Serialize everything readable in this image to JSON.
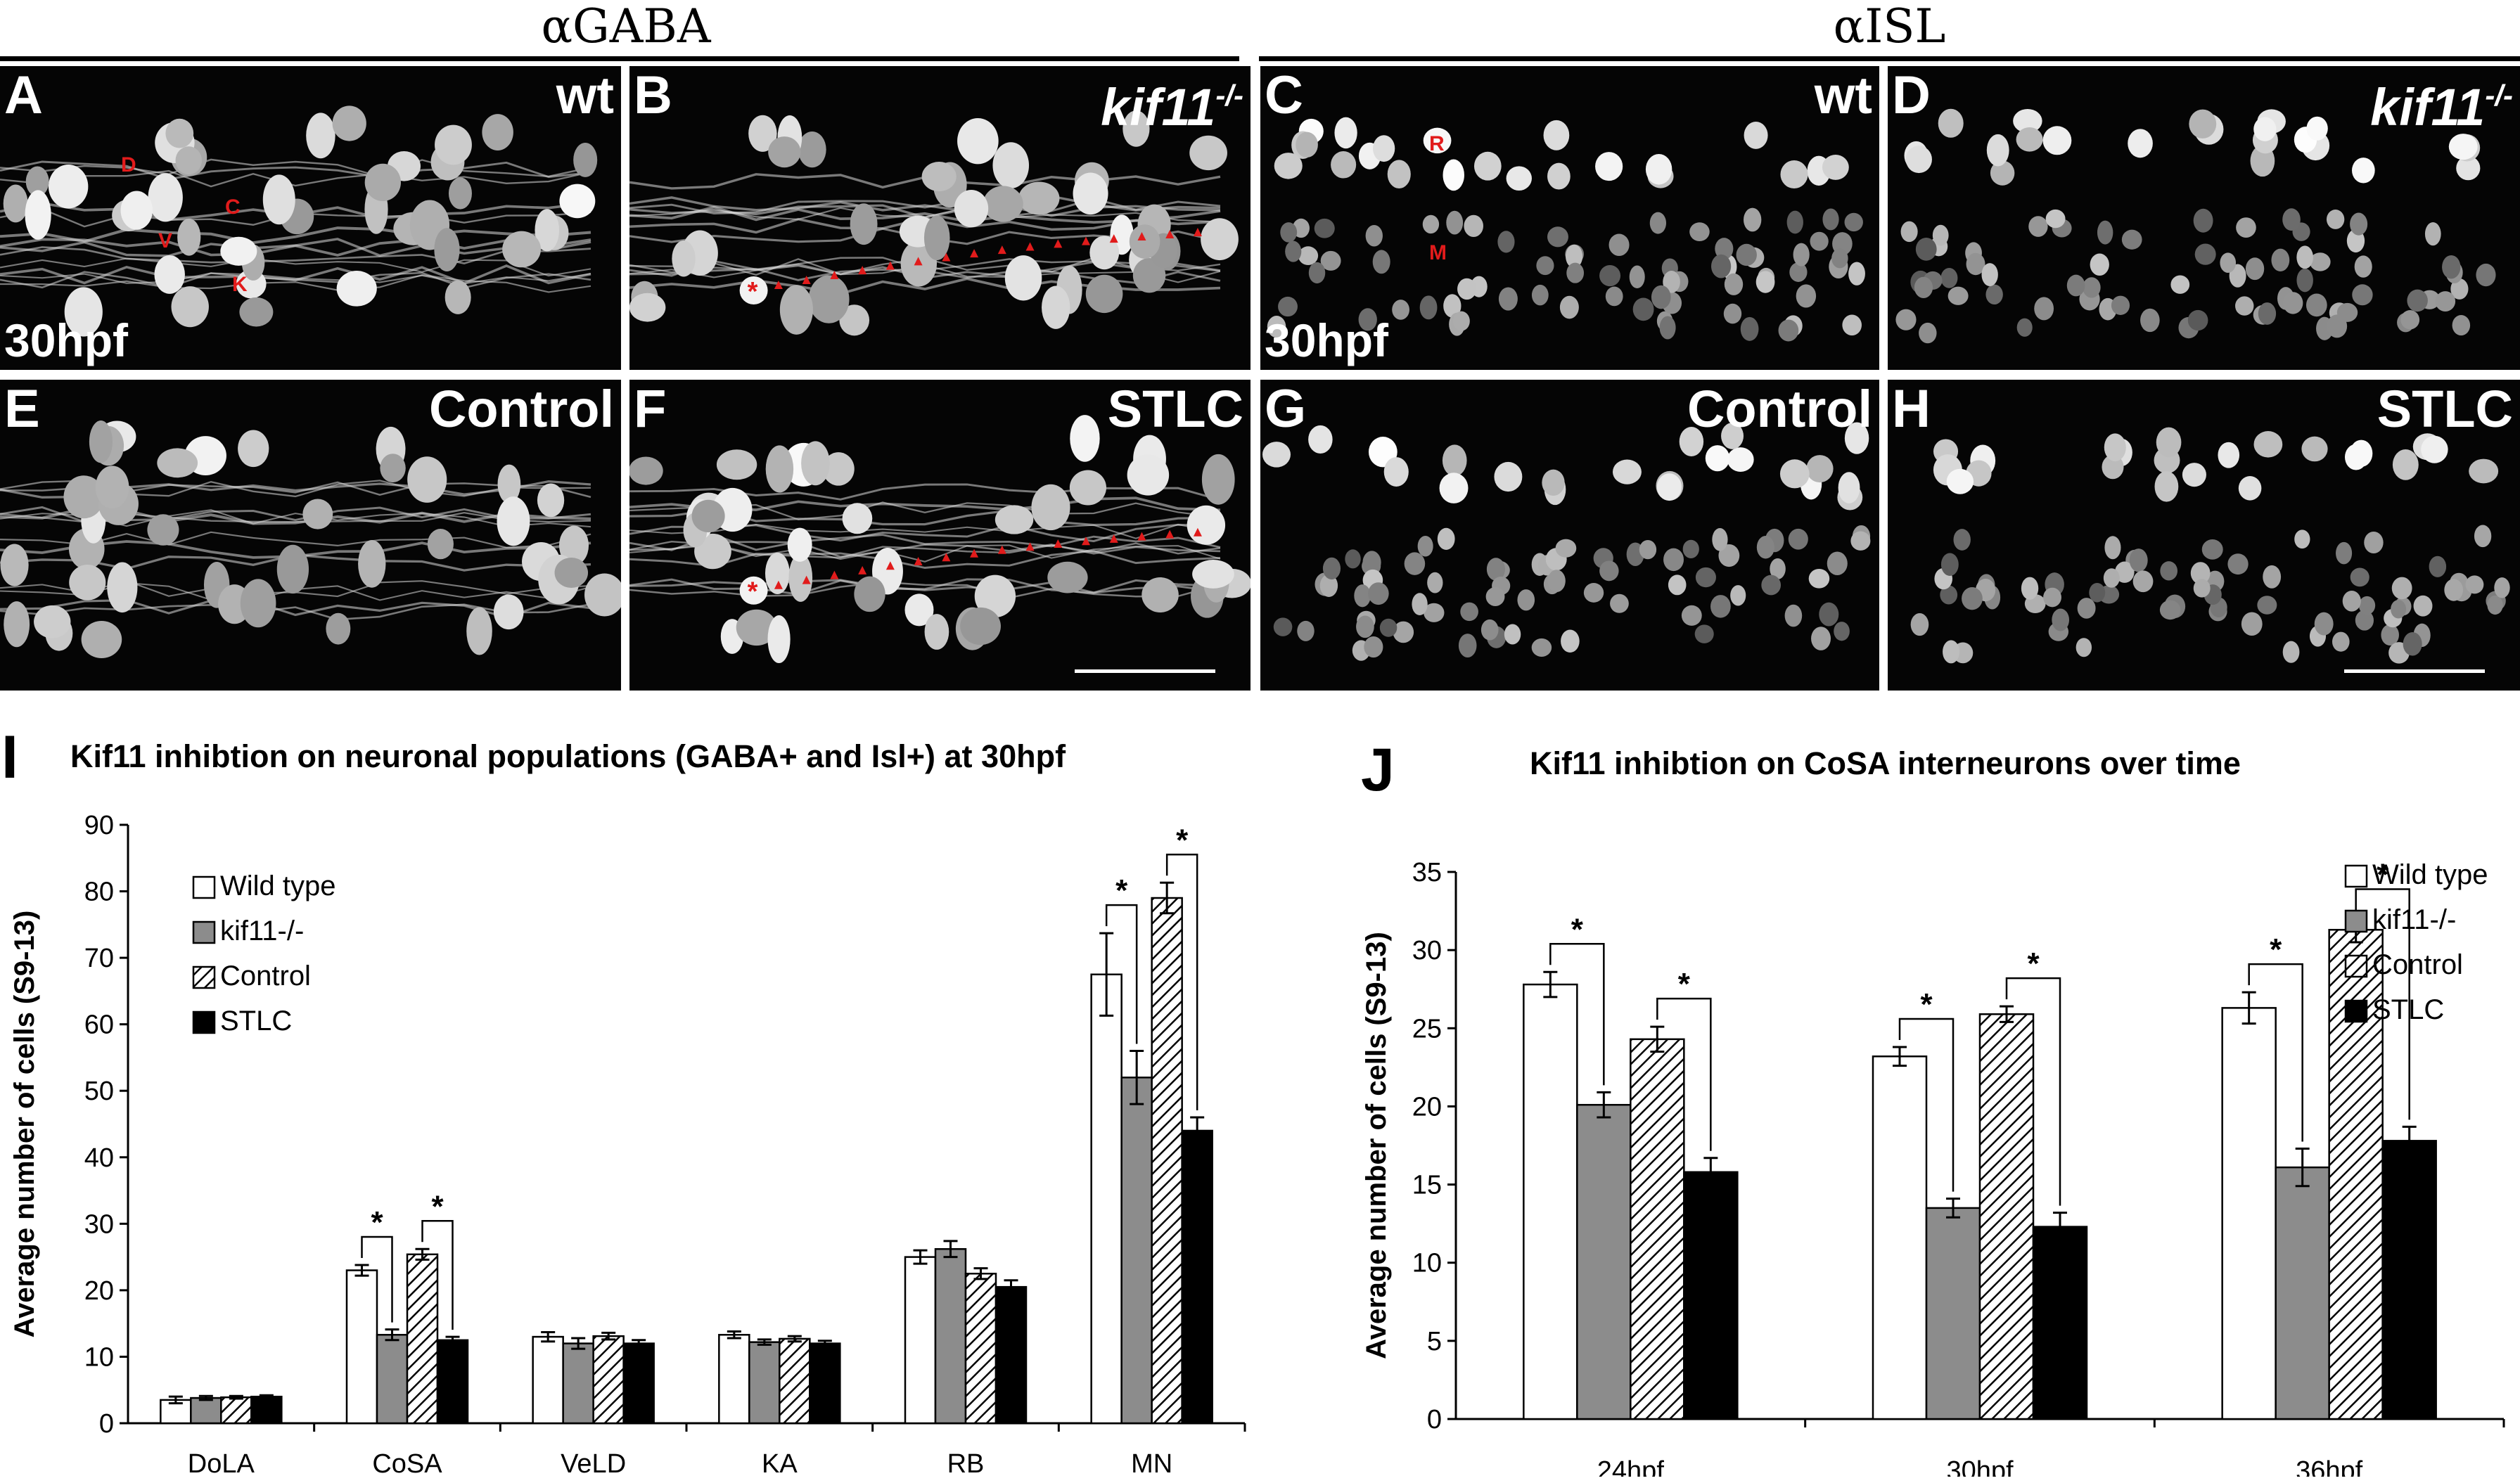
{
  "headers": {
    "left": "αGABA",
    "right": "αISL"
  },
  "panels": [
    {
      "letter": "A",
      "label": "wt",
      "label_italic": false,
      "stage": "30hpf",
      "kind": "gaba",
      "markers": [
        "D",
        "C",
        "V",
        "K"
      ]
    },
    {
      "letter": "B",
      "label": "kif11",
      "label_sup": "-/-",
      "label_italic": true,
      "kind": "gaba"
    },
    {
      "letter": "C",
      "label": "wt",
      "label_italic": false,
      "stage": "30hpf",
      "kind": "isl",
      "markers": [
        "R",
        "M"
      ]
    },
    {
      "letter": "D",
      "label": "kif11",
      "label_sup": "-/-",
      "label_italic": true,
      "kind": "isl"
    },
    {
      "letter": "E",
      "label": "Control",
      "label_italic": false,
      "kind": "gaba"
    },
    {
      "letter": "F",
      "label": "STLC",
      "label_italic": false,
      "kind": "gaba"
    },
    {
      "letter": "G",
      "label": "Control",
      "label_italic": false,
      "kind": "isl"
    },
    {
      "letter": "H",
      "label": "STLC",
      "label_italic": false,
      "kind": "isl"
    }
  ],
  "colors": {
    "background": "#ffffff",
    "micrograph_background": "#050505",
    "marker_red": "#e11b1b",
    "bar_wild_type": "#ffffff",
    "bar_kif11": "#8c8c8c",
    "bar_control": "hatched",
    "bar_stlc": "#000000"
  },
  "chart_data": [
    {
      "panel": "I",
      "type": "bar",
      "title": "Kif11 inhibtion on neuronal populations (GABA+ and Isl+) at 30hpf",
      "ylabel": "Average number of cells (S9-13)",
      "xlabel": "",
      "ylim": [
        0,
        90
      ],
      "yticks": [
        0,
        10,
        20,
        30,
        40,
        50,
        60,
        70,
        80,
        90
      ],
      "categories": [
        "DoLA",
        "CoSA",
        "VeLD",
        "KA",
        "RB",
        "MN"
      ],
      "legend_position": "top-left",
      "series": [
        {
          "name": "Wild type",
          "values": [
            3.5,
            23,
            13,
            13.3,
            25,
            67.5
          ],
          "errors": [
            0.5,
            0.8,
            0.7,
            0.5,
            1,
            6.2
          ]
        },
        {
          "name": "kif11-/-",
          "values": [
            3.8,
            13.3,
            12,
            12.2,
            26.2,
            52
          ],
          "errors": [
            0.3,
            0.8,
            0.8,
            0.4,
            1.2,
            4
          ]
        },
        {
          "name": "Control",
          "values": [
            3.9,
            25.4,
            13.1,
            12.7,
            22.5,
            79
          ],
          "errors": [
            0.2,
            0.8,
            0.5,
            0.4,
            0.8,
            2.3
          ]
        },
        {
          "name": "STLC",
          "values": [
            4,
            12.5,
            12,
            12,
            20.5,
            44
          ],
          "errors": [
            0.2,
            0.5,
            0.5,
            0.4,
            1,
            2
          ]
        }
      ],
      "significance": [
        {
          "category": "CoSA",
          "from": 0,
          "to": 1,
          "label": "*"
        },
        {
          "category": "CoSA",
          "from": 2,
          "to": 3,
          "label": "*"
        },
        {
          "category": "MN",
          "from": 0,
          "to": 1,
          "label": "*"
        },
        {
          "category": "MN",
          "from": 2,
          "to": 3,
          "label": "*"
        }
      ]
    },
    {
      "panel": "J",
      "type": "bar",
      "title": "Kif11 inhibtion on CoSA interneurons over time",
      "ylabel": "Average number of cells (S9-13)",
      "xlabel": "",
      "ylim": [
        0,
        35
      ],
      "yticks": [
        0,
        5,
        10,
        15,
        20,
        25,
        30,
        35
      ],
      "categories": [
        "24hpf",
        "30hpf",
        "36hpf"
      ],
      "legend_position": "top-right",
      "series": [
        {
          "name": "Wild type",
          "values": [
            27.8,
            23.2,
            26.3
          ],
          "errors": [
            0.8,
            0.6,
            1
          ]
        },
        {
          "name": "kif11-/-",
          "values": [
            20.1,
            13.5,
            16.1
          ],
          "errors": [
            0.8,
            0.6,
            1.2
          ]
        },
        {
          "name": "Control",
          "values": [
            24.3,
            25.9,
            31.3
          ],
          "errors": [
            0.8,
            0.5,
            0.8
          ]
        },
        {
          "name": "STLC",
          "values": [
            15.8,
            12.3,
            17.8
          ],
          "errors": [
            0.9,
            0.9,
            0.9
          ]
        }
      ],
      "significance": [
        {
          "category": "24hpf",
          "from": 0,
          "to": 1,
          "label": "*"
        },
        {
          "category": "24hpf",
          "from": 2,
          "to": 3,
          "label": "*"
        },
        {
          "category": "30hpf",
          "from": 0,
          "to": 1,
          "label": "*"
        },
        {
          "category": "30hpf",
          "from": 2,
          "to": 3,
          "label": "*"
        },
        {
          "category": "36hpf",
          "from": 0,
          "to": 1,
          "label": "*"
        },
        {
          "category": "36hpf",
          "from": 2,
          "to": 3,
          "label": "*"
        }
      ]
    }
  ]
}
